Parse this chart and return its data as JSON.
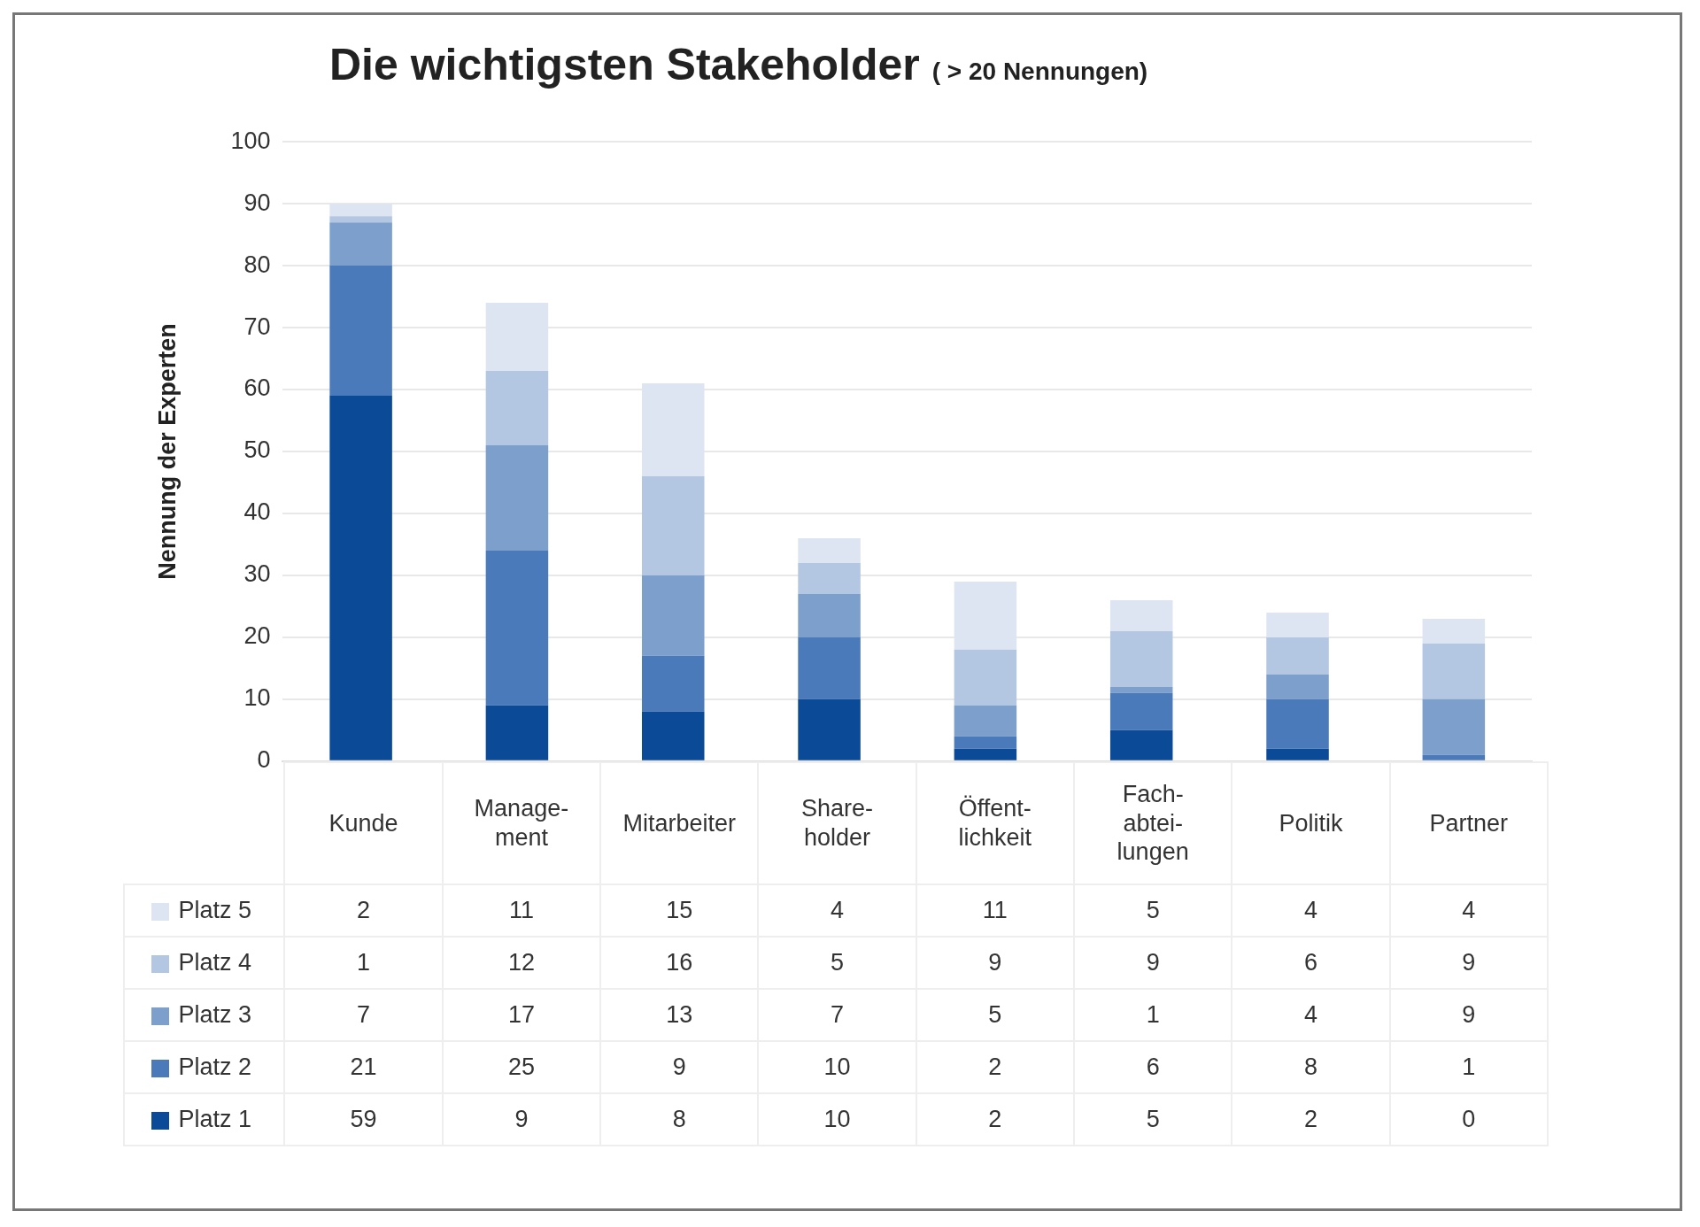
{
  "chart_data": {
    "type": "bar",
    "title": "Die wichtigsten Stakeholder",
    "subtitle": "( > 20 Nennungen)",
    "ylabel": "Nennung der Experten",
    "categories": [
      "Kunde",
      "Manage-ment",
      "Mitarbeiter",
      "Share-holder",
      "Öffent-lichkeit",
      "Fach-abtei-lungen",
      "Politik",
      "Partner"
    ],
    "stacked": true,
    "ylim": [
      0,
      100
    ],
    "yticks": [
      0,
      10,
      20,
      30,
      40,
      50,
      60,
      70,
      80,
      90,
      100
    ],
    "grid": "y",
    "legend": "bottom left",
    "data_labels": true,
    "series": [
      {
        "name": "Platz 1",
        "color": "#0a4a96",
        "values": [
          59,
          9,
          8,
          10,
          2,
          5,
          2,
          0
        ]
      },
      {
        "name": "Platz 2",
        "color": "#4a7aba",
        "values": [
          21,
          25,
          9,
          10,
          2,
          6,
          8,
          1
        ]
      },
      {
        "name": "Platz 3",
        "color": "#7c9fcc",
        "values": [
          7,
          17,
          13,
          7,
          5,
          1,
          4,
          9
        ]
      },
      {
        "name": "Platz 4",
        "color": "#b3c6e2",
        "values": [
          1,
          12,
          16,
          5,
          9,
          9,
          6,
          9
        ]
      },
      {
        "name": "Platz 5",
        "color": "#dde4f2",
        "values": [
          2,
          11,
          15,
          4,
          11,
          5,
          4,
          4
        ]
      }
    ]
  }
}
